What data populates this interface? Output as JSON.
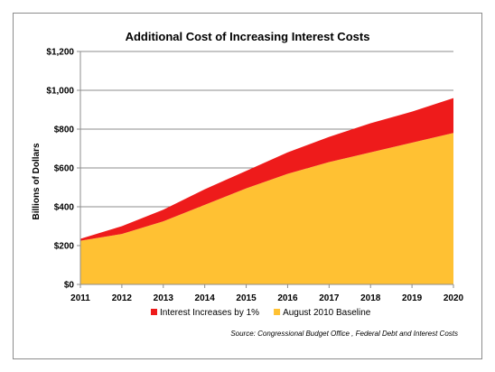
{
  "chart_data": {
    "type": "area",
    "title": "Additional Cost of Increasing Interest Costs",
    "ylabel": "Billions of Dollars",
    "xlabel": "",
    "x": [
      "2011",
      "2012",
      "2013",
      "2014",
      "2015",
      "2016",
      "2017",
      "2018",
      "2019",
      "2020"
    ],
    "ylim": [
      0,
      1200
    ],
    "yticks": [
      0,
      200,
      400,
      600,
      800,
      1000,
      1200
    ],
    "ytick_labels": [
      "$0",
      "$200",
      "$400",
      "$600",
      "$800",
      "$1,000",
      "$1,200"
    ],
    "stacked": true,
    "grid": true,
    "legend_position": "bottom",
    "series": [
      {
        "name": "August 2010 Baseline",
        "color": "#FFC133",
        "values": [
          225,
          260,
          325,
          410,
          495,
          570,
          630,
          680,
          730,
          780
        ]
      },
      {
        "name": "Interest Increases by 1%",
        "color": "#EE1B1B",
        "values": [
          10,
          40,
          60,
          80,
          90,
          110,
          130,
          150,
          160,
          180
        ]
      }
    ],
    "legend_order": [
      "Interest Increases by 1%",
      "August 2010 Baseline"
    ],
    "source_note": "Source:  Congressional Budget Office , Federal Debt and Interest Costs"
  }
}
